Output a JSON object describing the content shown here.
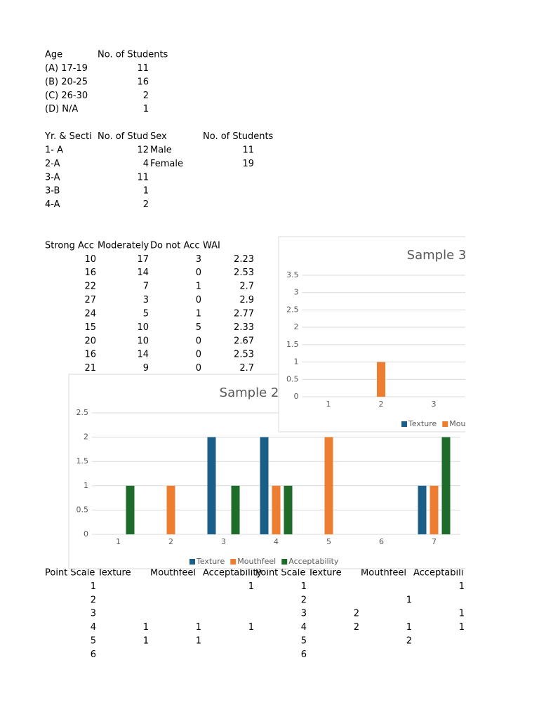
{
  "tables": {
    "age": {
      "header": [
        "Age",
        "No. of Students"
      ],
      "rows": [
        [
          "(A) 17-19",
          11
        ],
        [
          "(B) 20-25",
          16
        ],
        [
          "(C) 26-30",
          2
        ],
        [
          "(D) N/A",
          1
        ]
      ]
    },
    "year_section": {
      "header": [
        "Yr. & Secti",
        "No. of Stud"
      ],
      "rows": [
        [
          "1- A",
          12
        ],
        [
          "2-A",
          4
        ],
        [
          "3-A",
          11
        ],
        [
          "3-B",
          1
        ],
        [
          "4-A",
          2
        ]
      ]
    },
    "sex": {
      "header": [
        "Sex",
        "No. of Students"
      ],
      "rows": [
        [
          "Male",
          11
        ],
        [
          "Female",
          19
        ]
      ]
    },
    "ratings": {
      "header": [
        "Strong Acc",
        "Moderately",
        "Do not Acc",
        "WAI"
      ],
      "rows": [
        [
          10,
          17,
          3,
          2.23
        ],
        [
          16,
          14,
          0,
          2.53
        ],
        [
          22,
          7,
          1,
          2.7
        ],
        [
          27,
          3,
          0,
          2.9
        ],
        [
          24,
          5,
          1,
          2.77
        ],
        [
          15,
          10,
          5,
          2.33
        ],
        [
          20,
          10,
          0,
          2.67
        ],
        [
          16,
          14,
          0,
          2.53
        ],
        [
          21,
          9,
          0,
          2.7
        ]
      ]
    },
    "point_scale_1": {
      "header": [
        "Point Scale",
        "Texture",
        "Mouthfeel",
        "Acceptability"
      ],
      "rows": [
        [
          1,
          null,
          null,
          1
        ],
        [
          2,
          null,
          null,
          null
        ],
        [
          3,
          null,
          null,
          null
        ],
        [
          4,
          1,
          1,
          1
        ],
        [
          5,
          1,
          1,
          null
        ],
        [
          6,
          null,
          null,
          null
        ]
      ]
    },
    "point_scale_2": {
      "header": [
        "Point Scale",
        "Texture",
        "Mouthfeel",
        "Acceptabili"
      ],
      "rows": [
        [
          1,
          null,
          null,
          1
        ],
        [
          2,
          null,
          1,
          null
        ],
        [
          3,
          2,
          null,
          1
        ],
        [
          4,
          2,
          1,
          1
        ],
        [
          5,
          null,
          2,
          null
        ],
        [
          6,
          null,
          null,
          null
        ]
      ]
    }
  },
  "charts": [
    {
      "type": "bar",
      "title": "Sample 2",
      "categories": [
        "1",
        "2",
        "3",
        "4",
        "5",
        "6",
        "7"
      ],
      "series": [
        {
          "name": "Texture",
          "color": "#1b5e87",
          "values": [
            null,
            null,
            2,
            2,
            null,
            null,
            1
          ]
        },
        {
          "name": "Mouthfeel",
          "color": "#ed7d31",
          "values": [
            null,
            1,
            null,
            1,
            2,
            null,
            1
          ]
        },
        {
          "name": "Acceptability",
          "color": "#1e6b2a",
          "values": [
            1,
            null,
            1,
            1,
            null,
            null,
            2
          ]
        }
      ],
      "ylim": [
        0,
        2.5
      ],
      "yticks": [
        0,
        0.5,
        1,
        1.5,
        2,
        2.5
      ],
      "grid": true,
      "legend": "bottom"
    },
    {
      "type": "bar",
      "title": "Sample 3",
      "categories": [
        "1",
        "2",
        "3"
      ],
      "series": [
        {
          "name": "Texture",
          "color": "#1b5e87",
          "values": [
            null,
            null,
            null
          ]
        },
        {
          "name": "Mou",
          "color": "#ed7d31",
          "values": [
            null,
            1,
            null
          ]
        }
      ],
      "ylim": [
        0,
        3.5
      ],
      "yticks": [
        0,
        0.5,
        1,
        1.5,
        2,
        2.5,
        3,
        3.5
      ],
      "grid": true,
      "legend": "bottom"
    }
  ]
}
